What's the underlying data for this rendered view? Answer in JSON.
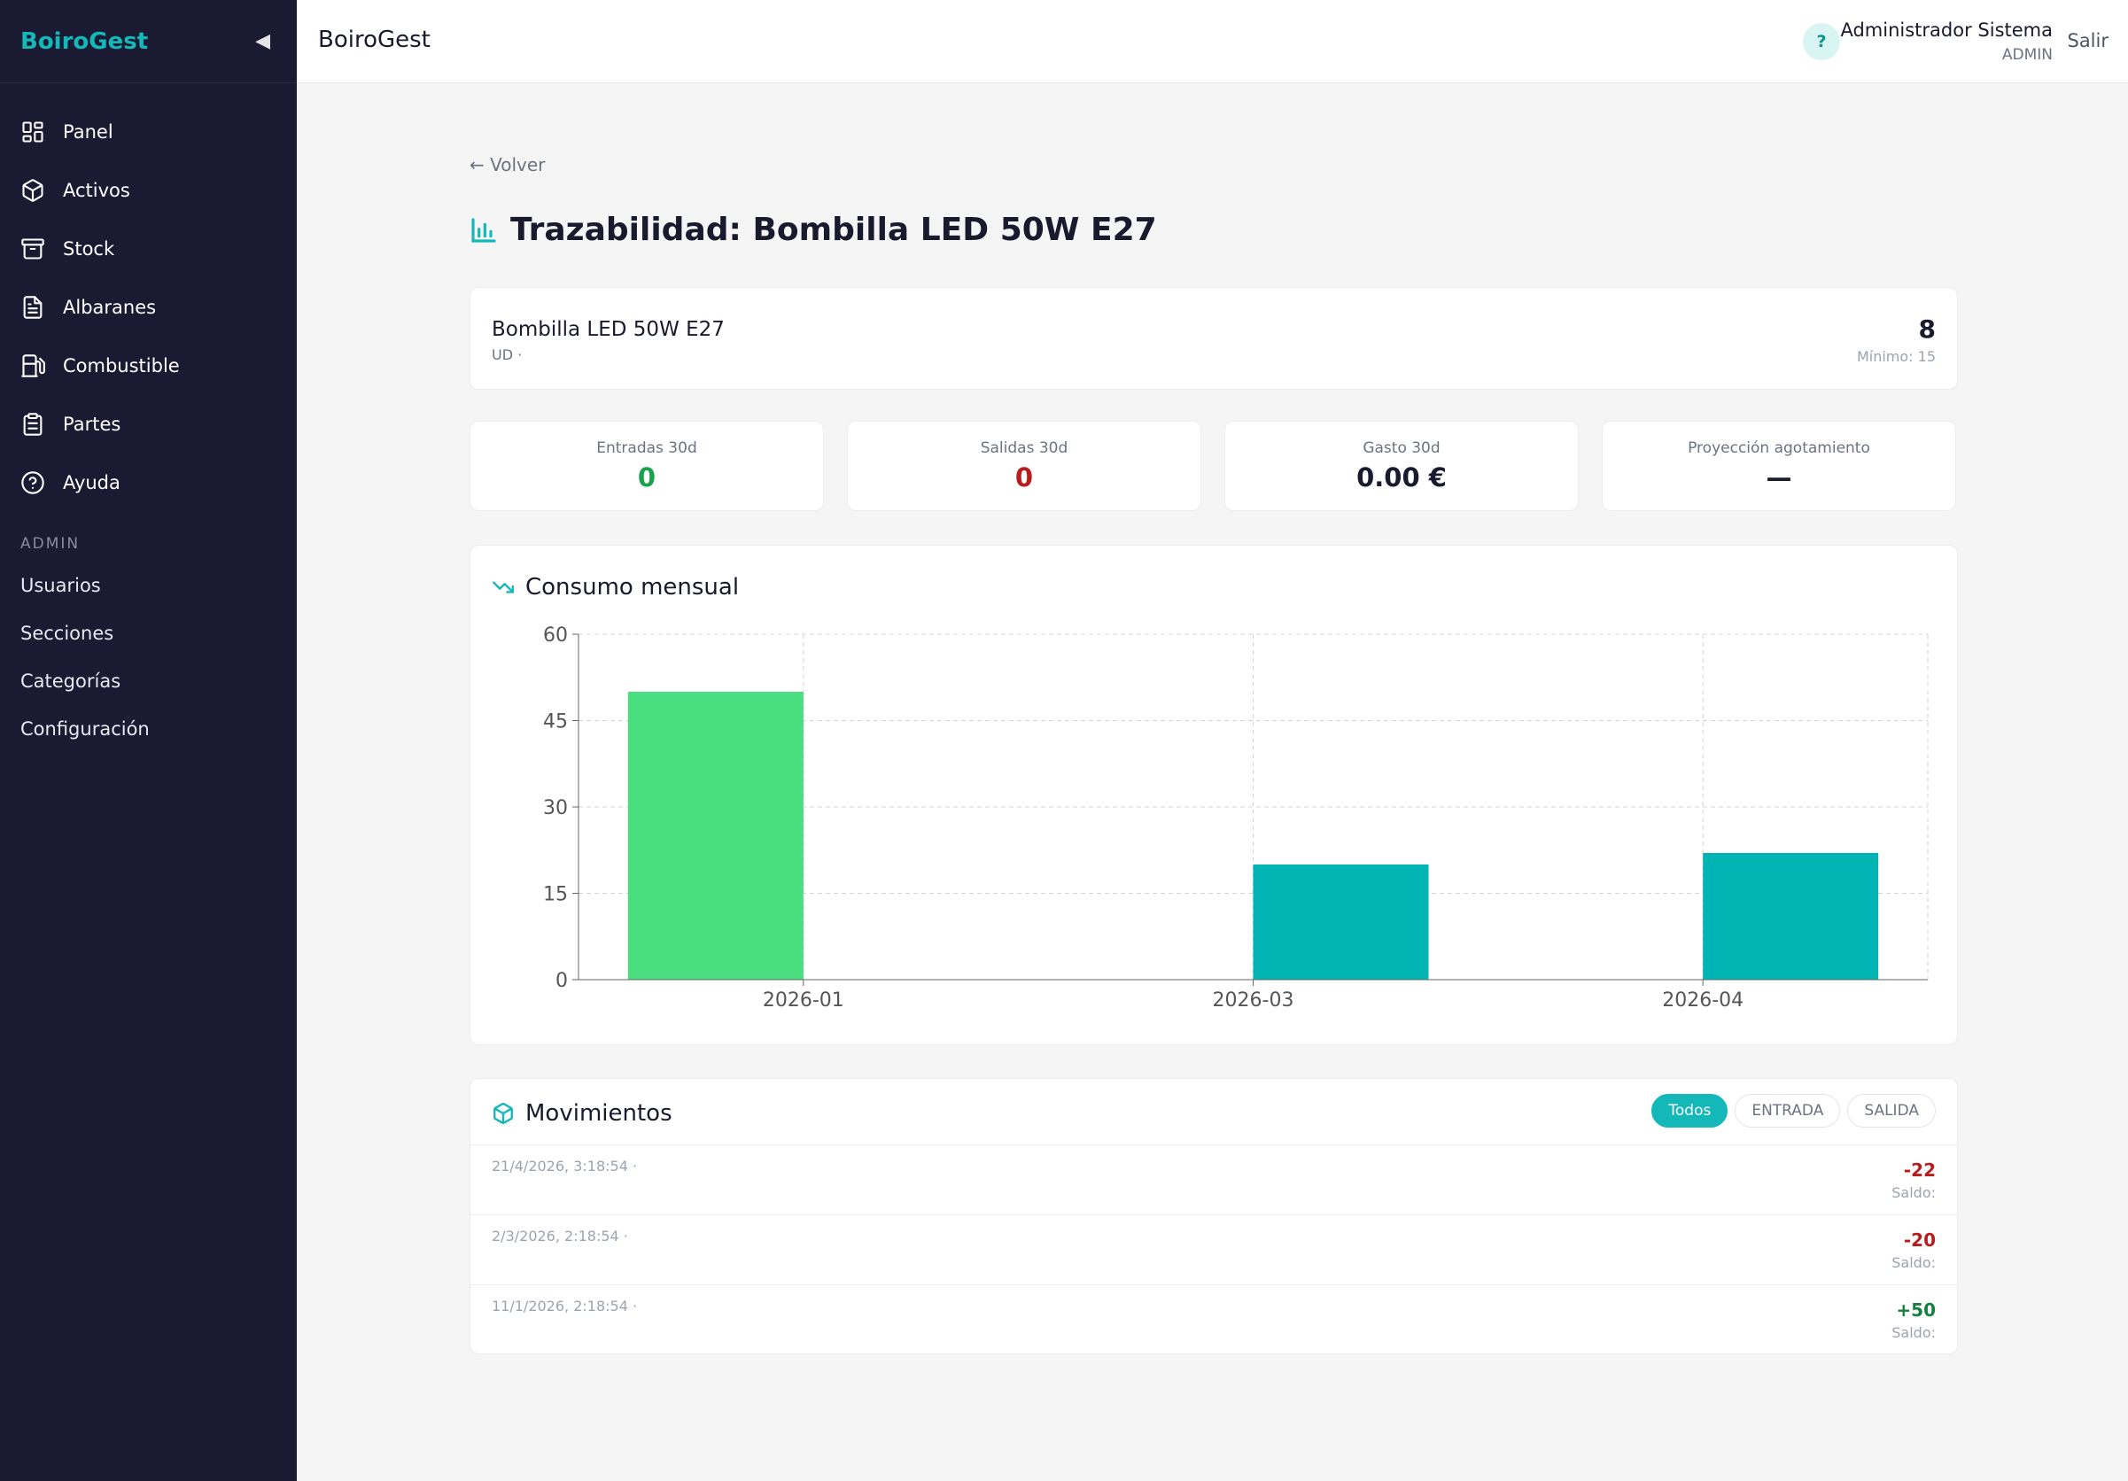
{
  "app": {
    "brand": "BoiroGest",
    "collapse_icon": "◀"
  },
  "sidebar": {
    "items": [
      {
        "label": "Panel",
        "icon": "grid-icon"
      },
      {
        "label": "Activos",
        "icon": "box-icon"
      },
      {
        "label": "Stock",
        "icon": "archive-icon"
      },
      {
        "label": "Albaranes",
        "icon": "document-icon"
      },
      {
        "label": "Combustible",
        "icon": "fuel-icon"
      },
      {
        "label": "Partes",
        "icon": "clipboard-icon"
      },
      {
        "label": "Ayuda",
        "icon": "help-circle-icon"
      }
    ],
    "admin_label": "ADMIN",
    "admin_items": [
      "Usuarios",
      "Secciones",
      "Categorías",
      "Configuración"
    ]
  },
  "topbar": {
    "title": "BoiroGest",
    "help": "?",
    "user_name": "Administrador Sistema",
    "user_role": "ADMIN",
    "logout": "Salir"
  },
  "page": {
    "back": "← Volver",
    "title": "Trazabilidad: Bombilla LED 50W E27"
  },
  "product": {
    "name": "Bombilla LED 50W E27",
    "unit": "UD ·",
    "stock": "8",
    "minimum": "Mínimo: 15"
  },
  "kpis": [
    {
      "label": "Entradas 30d",
      "value": "0",
      "color": "#16a34a"
    },
    {
      "label": "Salidas 30d",
      "value": "0",
      "color": "#b91c1c"
    },
    {
      "label": "Gasto 30d",
      "value": "0.00 €",
      "color": "#1a1a2e"
    },
    {
      "label": "Proyección agotamiento",
      "value": "—",
      "color": "#1a1a2e"
    }
  ],
  "chart_section": {
    "title": "Consumo mensual"
  },
  "chart_data": {
    "type": "bar",
    "categories": [
      "2026-01",
      "2026-03",
      "2026-04"
    ],
    "series": [
      {
        "values": [
          50,
          0,
          0
        ],
        "color": "#4ade80"
      },
      {
        "values": [
          0,
          20,
          22
        ],
        "color": "#00b4b4"
      }
    ],
    "y_ticks": [
      0,
      15,
      30,
      45,
      60
    ],
    "ylim": [
      0,
      60
    ],
    "grid": true
  },
  "movements": {
    "title": "Movimientos",
    "filters": [
      {
        "label": "Todos",
        "active": true
      },
      {
        "label": "ENTRADA",
        "active": false
      },
      {
        "label": "SALIDA",
        "active": false
      }
    ],
    "rows": [
      {
        "date": "21/4/2026, 3:18:54 ·",
        "qty": "-22",
        "saldo": "Saldo:",
        "sign": "neg"
      },
      {
        "date": "2/3/2026, 2:18:54 ·",
        "qty": "-20",
        "saldo": "Saldo:",
        "sign": "neg"
      },
      {
        "date": "11/1/2026, 2:18:54 ·",
        "qty": "+50",
        "saldo": "Saldo:",
        "sign": "pos"
      }
    ]
  }
}
